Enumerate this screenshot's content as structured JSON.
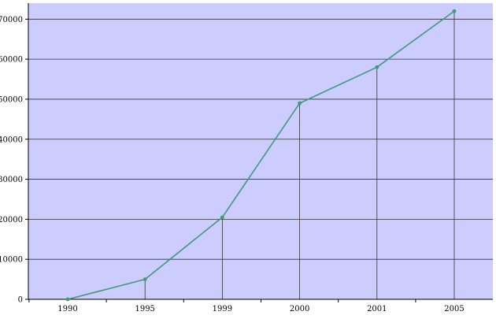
{
  "chart_data": {
    "type": "line",
    "title": "",
    "xlabel": "",
    "ylabel": "",
    "categories": [
      "1990",
      "1995",
      "1999",
      "2000",
      "2001",
      "2005"
    ],
    "series": [
      {
        "values": [
          0,
          5000,
          20500,
          49000,
          58000,
          72000
        ]
      }
    ],
    "ylim": [
      0,
      74000
    ],
    "yticks": [
      0,
      10000,
      20000,
      30000,
      40000,
      50000,
      60000,
      70000
    ],
    "grid": true,
    "legend": "none",
    "colors": {
      "plot_background": "#ccccff",
      "line": "#3f9a79",
      "grid": "#333333",
      "axis": "#000000"
    }
  }
}
